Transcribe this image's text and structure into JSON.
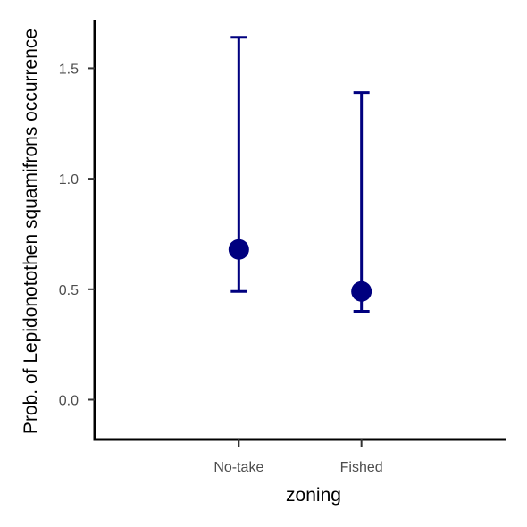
{
  "chart_data": {
    "type": "scatter",
    "title": "",
    "xlabel": "zoning",
    "ylabel": "Prob. of  Lepidonotothen squamifrons  occurrence",
    "categories": [
      "No-take",
      "Fished"
    ],
    "ylim": [
      -0.18,
      1.72
    ],
    "yticks": [
      0.0,
      0.5,
      1.0,
      1.5
    ],
    "ytick_labels": [
      "0.0",
      "0.5",
      "1.0",
      "1.5"
    ],
    "grid": false,
    "legend": "none",
    "series": [
      {
        "values": [
          0.68,
          0.49
        ],
        "lower": [
          0.49,
          0.4
        ],
        "upper": [
          1.64,
          1.39
        ]
      }
    ],
    "colors": {
      "points": "#00007f",
      "axis": "#000000",
      "ticks": "#333333"
    }
  }
}
